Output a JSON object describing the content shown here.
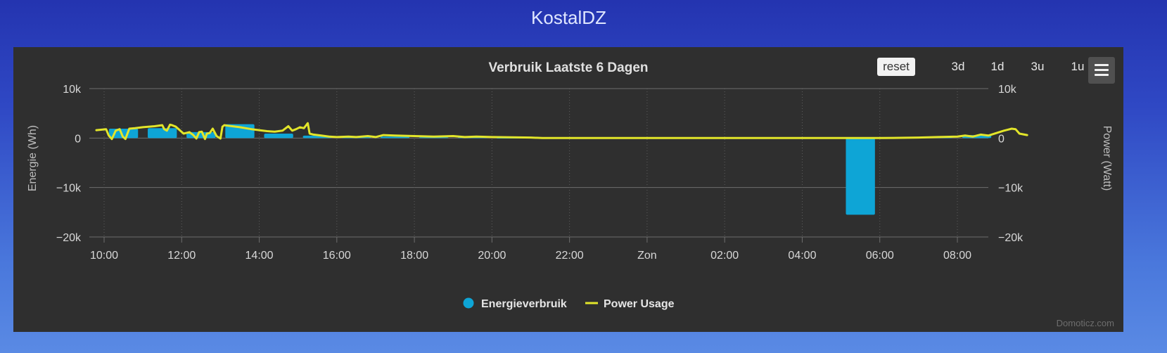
{
  "page": {
    "title": "KostalDZ"
  },
  "toolbar": {
    "buttons": [
      "reset",
      "3d",
      "1d",
      "3u",
      "1u"
    ],
    "menu_icon": "hamburger-menu-icon"
  },
  "credits": "Domoticz.com",
  "colors": {
    "bars": "#0ea5d6",
    "line": "#e2e52a",
    "panel": "#2f2f2f",
    "grid": "#6e6e6e"
  },
  "chart_data": {
    "type": "bar",
    "title": "Verbruik Laatste 6 Dagen",
    "ylabel": "Energie (Wh)",
    "ylabel_right": "Power (Watt)",
    "ylim": [
      -20000,
      10000
    ],
    "yticks": [
      "10k",
      "0",
      "−10k",
      "−20k"
    ],
    "xticks": [
      "10:00",
      "12:00",
      "14:00",
      "16:00",
      "18:00",
      "20:00",
      "22:00",
      "Zon",
      "02:00",
      "04:00",
      "06:00",
      "08:00"
    ],
    "x_hours": [
      10,
      12,
      14,
      16,
      18,
      20,
      22,
      24,
      26,
      28,
      30,
      32
    ],
    "legend": [
      {
        "name": "Energieverbruik",
        "marker": "circle"
      },
      {
        "name": "Power Usage",
        "marker": "line"
      }
    ],
    "series": [
      {
        "name": "Energieverbruik",
        "type": "bar",
        "x": [
          10.5,
          11.5,
          12.5,
          13.5,
          14.5,
          15.5,
          16.5,
          17.5,
          18.5,
          19.5,
          20.5,
          21.5,
          22.5,
          23.5,
          24.5,
          25.5,
          26.5,
          27.5,
          28.5,
          29.5,
          30.5,
          31.5,
          32.5
        ],
        "values": [
          1900,
          2000,
          1200,
          2800,
          900,
          500,
          200,
          300,
          150,
          150,
          50,
          50,
          0,
          0,
          0,
          0,
          0,
          0,
          0,
          -15500,
          0,
          300,
          600
        ]
      },
      {
        "name": "Power Usage",
        "type": "line",
        "x": [
          9.8,
          10.05,
          10.12,
          10.2,
          10.3,
          10.4,
          10.48,
          10.55,
          10.65,
          10.8,
          11.0,
          11.3,
          11.5,
          11.55,
          11.62,
          11.7,
          11.75,
          11.85,
          11.95,
          12.05,
          12.2,
          12.3,
          12.38,
          12.45,
          12.52,
          12.6,
          12.65,
          12.72,
          12.8,
          12.9,
          13.0,
          13.05,
          13.1,
          13.2,
          13.5,
          13.8,
          14.0,
          14.2,
          14.4,
          14.6,
          14.75,
          14.85,
          14.95,
          15.05,
          15.15,
          15.25,
          15.3,
          15.4,
          15.6,
          15.8,
          16.0,
          16.3,
          16.5,
          16.8,
          17.0,
          17.2,
          17.5,
          18.0,
          18.5,
          19.0,
          19.3,
          19.6,
          20.0,
          20.5,
          21.0,
          21.3,
          22.0,
          24.0,
          26.0,
          28.0,
          30.0,
          30.5,
          31.0,
          31.5,
          32.0,
          32.2,
          32.4,
          32.5,
          32.6,
          32.8,
          33.0,
          33.2,
          33.3,
          33.4,
          33.5,
          33.6,
          33.8
        ],
        "values": [
          1600,
          1800,
          500,
          -200,
          1500,
          1800,
          300,
          -200,
          1900,
          2000,
          2200,
          2400,
          2600,
          1800,
          1500,
          2700,
          2600,
          2300,
          1600,
          900,
          1200,
          600,
          -100,
          1200,
          1300,
          -200,
          900,
          1000,
          1900,
          400,
          -100,
          2300,
          2600,
          2500,
          2200,
          1800,
          1600,
          1400,
          1300,
          1500,
          2400,
          1500,
          1800,
          2200,
          2000,
          3000,
          900,
          700,
          500,
          300,
          200,
          300,
          200,
          400,
          200,
          600,
          500,
          400,
          300,
          400,
          200,
          300,
          200,
          150,
          100,
          0,
          0,
          0,
          0,
          0,
          0,
          50,
          100,
          200,
          300,
          500,
          300,
          500,
          700,
          500,
          1000,
          1500,
          1700,
          1900,
          1800,
          900,
          600
        ]
      }
    ]
  }
}
